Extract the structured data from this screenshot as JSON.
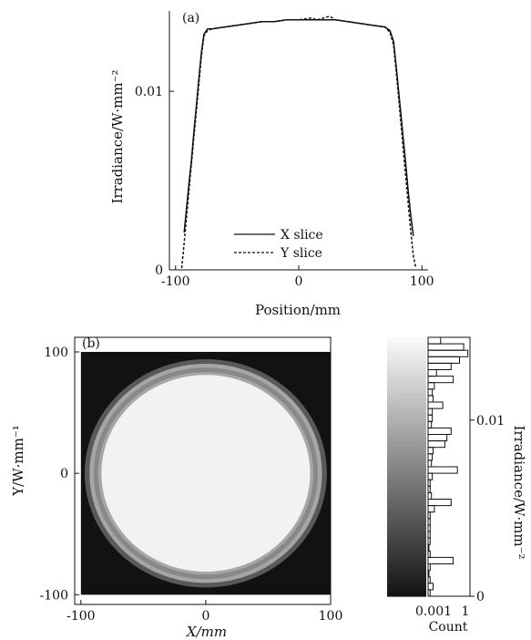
{
  "chart_data": [
    {
      "panel_label": "(a)",
      "type": "line",
      "xlabel": "Position/mm",
      "ylabel": "Irradiance/W·mm⁻²",
      "xlim": [
        -105,
        105
      ],
      "ylim": [
        0,
        0.0145
      ],
      "x_ticks": [
        -100,
        0,
        100
      ],
      "y_ticks": [
        0,
        0.01
      ],
      "x_tick_labels": [
        "-100",
        "0",
        "100"
      ],
      "y_tick_labels": [
        "0",
        "0.01"
      ],
      "legend_position": "bottom-center",
      "series": [
        {
          "name": "X slice",
          "style": "solid",
          "x": [
            -93,
            -91,
            -89,
            -87,
            -85,
            -83,
            -81,
            -79,
            -77,
            -74,
            -70,
            -60,
            -50,
            -40,
            -30,
            -20,
            -10,
            0,
            10,
            20,
            30,
            40,
            50,
            60,
            70,
            74,
            77,
            79,
            81,
            83,
            85,
            87,
            89,
            91,
            93
          ],
          "y": [
            0.0021,
            0.0035,
            0.0049,
            0.0062,
            0.0078,
            0.0093,
            0.0108,
            0.0122,
            0.0132,
            0.0135,
            0.0135,
            0.0136,
            0.0137,
            0.0138,
            0.0139,
            0.0139,
            0.014,
            0.014,
            0.014,
            0.014,
            0.014,
            0.0139,
            0.0138,
            0.0137,
            0.0136,
            0.0134,
            0.0128,
            0.0115,
            0.0101,
            0.0087,
            0.0072,
            0.0058,
            0.0043,
            0.003,
            0.0019
          ]
        },
        {
          "name": "Y slice",
          "style": "dashed",
          "x": [
            -95,
            -93,
            -91,
            -89,
            -87,
            -85,
            -83,
            -81,
            -79,
            -77,
            -74,
            -70,
            -60,
            -50,
            -40,
            -30,
            -20,
            -10,
            0,
            10,
            15,
            20,
            25,
            30,
            40,
            50,
            60,
            70,
            74,
            77,
            79,
            81,
            83,
            85,
            87,
            89,
            91,
            93,
            95
          ],
          "y": [
            0.0001,
            0.0015,
            0.003,
            0.0045,
            0.006,
            0.0075,
            0.009,
            0.0105,
            0.012,
            0.0131,
            0.0134,
            0.0135,
            0.0136,
            0.0137,
            0.0138,
            0.0139,
            0.0139,
            0.014,
            0.014,
            0.0141,
            0.014,
            0.0141,
            0.0142,
            0.014,
            0.0139,
            0.0138,
            0.0137,
            0.0136,
            0.0133,
            0.0126,
            0.0112,
            0.0097,
            0.0082,
            0.0066,
            0.0051,
            0.0036,
            0.0021,
            0.0008,
            0.0001
          ]
        }
      ]
    },
    {
      "panel_label": "(b)",
      "type": "heatmap",
      "xlabel": "X/mm",
      "ylabel": "Y/W·mm⁻¹",
      "xlim": [
        -105,
        100
      ],
      "ylim": [
        -108,
        112
      ],
      "x_ticks": [
        -100,
        0,
        100
      ],
      "y_ticks": [
        -100,
        0,
        100
      ],
      "x_tick_labels": [
        "-100",
        "0",
        "100"
      ],
      "y_tick_labels": [
        "-100",
        "0",
        "100"
      ],
      "field": {
        "background_value": 0.0,
        "disk_value": 0.0138,
        "ring_inner_value": 0.0075,
        "ring_outer_value": 0.0045,
        "disk_radius_x_mm": 97,
        "disk_radius_y_mm": 94,
        "ring_radius_mm": 88,
        "colormap": "gray"
      },
      "colorbar": {
        "label": "Irradiance/W·mm⁻²",
        "range": [
          0,
          0.0147
        ],
        "ticks": [
          0,
          0.01
        ],
        "tick_labels": [
          "0",
          "0.01"
        ]
      },
      "histogram": {
        "xlabel": "Count",
        "x_tick_labels": [
          "0.001",
          "1"
        ],
        "bins_top_to_bottom": [
          0.3,
          0.85,
          0.95,
          0.75,
          0.55,
          0.2,
          0.6,
          0.15,
          0.1,
          0.12,
          0.35,
          0.1,
          0.1,
          0.08,
          0.55,
          0.45,
          0.4,
          0.12,
          0.1,
          0.08,
          0.7,
          0.1,
          0.05,
          0.05,
          0.08,
          0.55,
          0.15,
          0.05,
          0.05,
          0.05,
          0.05,
          0.05,
          0.02,
          0.05,
          0.6,
          0.05,
          0.02,
          0.05,
          0.12,
          0.05
        ]
      }
    }
  ]
}
